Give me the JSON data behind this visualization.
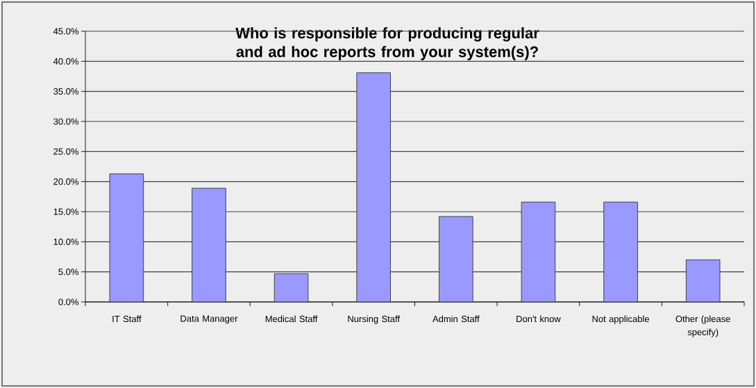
{
  "chart_data": {
    "type": "bar",
    "title": "Who is responsible for  producing regular and ad hoc reports from your system(s)?",
    "categories": [
      "IT Staff",
      "Data Manager",
      "Medical Staff",
      "Nursing Staff",
      "Admin Staff",
      "Don't know",
      "Not applicable",
      "Other (please specify)"
    ],
    "values": [
      21.3,
      18.9,
      4.7,
      38.1,
      14.2,
      16.6,
      16.6,
      7.0
    ],
    "color": "#9999ff",
    "ylim": [
      0,
      45
    ],
    "yticks": [
      {
        "value": 0,
        "label": "0.0%"
      },
      {
        "value": 5,
        "label": "5.0%"
      },
      {
        "value": 10,
        "label": "10.0%"
      },
      {
        "value": 15,
        "label": "15.0%"
      },
      {
        "value": 20,
        "label": "20.0%"
      },
      {
        "value": 25,
        "label": "25.0%"
      },
      {
        "value": 30,
        "label": "30.0%"
      },
      {
        "value": 35,
        "label": "35.0%"
      },
      {
        "value": 40,
        "label": "40.0%"
      },
      {
        "value": 45,
        "label": "45.0%"
      }
    ],
    "grid": "y"
  }
}
